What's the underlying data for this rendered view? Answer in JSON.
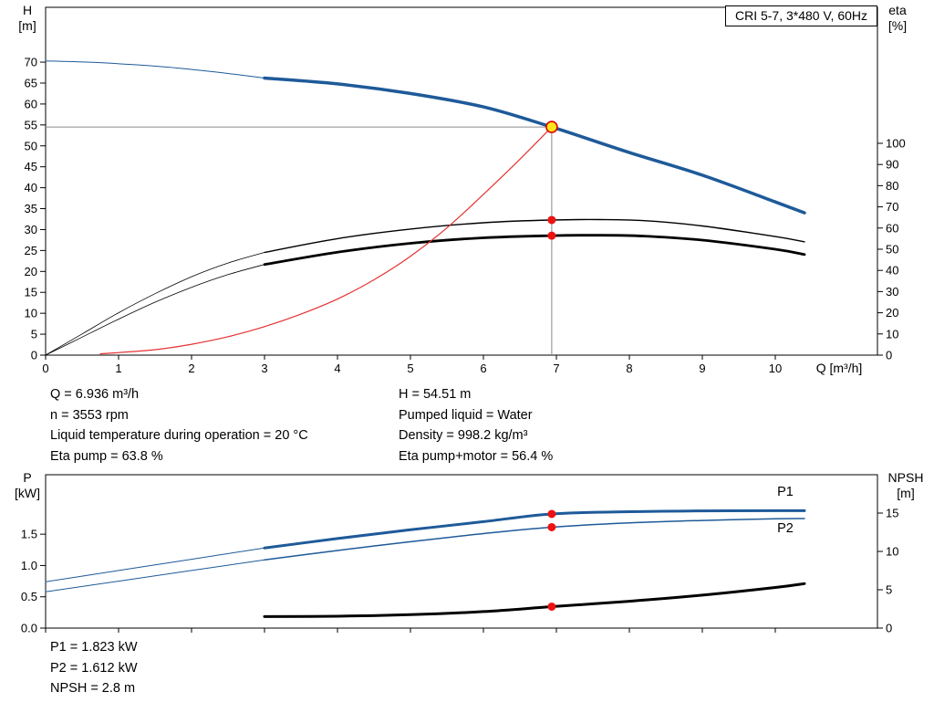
{
  "info_top": {
    "left": [
      "Q = 6.936 m³/h",
      "n = 3553 rpm",
      "Liquid temperature during operation = 20 °C",
      "Eta pump = 63.8 %"
    ],
    "right": [
      "H = 54.51 m",
      "Pumped liquid = Water",
      "Density = 998.2 kg/m³",
      "Eta pump+motor = 56.4 %"
    ]
  },
  "info_bottom": [
    "P1 = 1.823 kW",
    "P2 = 1.612 kW",
    "NPSH = 2.8 m"
  ],
  "chart_data": [
    {
      "type": "line",
      "id": "qh-eta-chart",
      "title": "CRI 5-7, 3*480 V, 60Hz",
      "x_axis": {
        "label": "Q [m³/h]",
        "min": 0,
        "max": 11.4,
        "tick_vals": [
          0,
          1,
          2,
          3,
          4,
          5,
          6,
          7,
          8,
          9,
          10
        ],
        "tick_labels": [
          "0",
          "1",
          "2",
          "3",
          "4",
          "5",
          "6",
          "7",
          "8",
          "9",
          "10"
        ]
      },
      "left_axis": {
        "label_lines": [
          "H",
          "[m]"
        ],
        "min": 0,
        "max": 83.1,
        "tick_vals": [
          0,
          5,
          10,
          15,
          20,
          25,
          30,
          35,
          40,
          45,
          50,
          55,
          60,
          65,
          70
        ],
        "tick_labels": [
          "0",
          "5",
          "10",
          "15",
          "20",
          "25",
          "30",
          "35",
          "40",
          "45",
          "50",
          "55",
          "60",
          "65",
          "70"
        ]
      },
      "right_axis": {
        "label_lines": [
          "eta",
          "[%]"
        ],
        "min": 0,
        "max": 164.2,
        "tick_vals": [
          0,
          10,
          20,
          30,
          40,
          50,
          60,
          70,
          80,
          90,
          100
        ],
        "tick_labels": [
          "0",
          "10",
          "20",
          "30",
          "40",
          "50",
          "60",
          "70",
          "80",
          "90",
          "100"
        ]
      },
      "crosshair": {
        "q": 6.936,
        "h": 54.51,
        "color": "#8a8a8a"
      },
      "series": [
        {
          "name": "h-curve-extension",
          "axis": "left",
          "color": "#1e5a99",
          "width": 1,
          "points": [
            [
              0,
              70.3
            ],
            [
              0.6,
              70.0
            ],
            [
              1.2,
              69.4
            ],
            [
              1.8,
              68.6
            ],
            [
              2.4,
              67.5
            ],
            [
              3,
              66.2
            ]
          ]
        },
        {
          "name": "h-curve",
          "axis": "left",
          "color": "#1e5a99",
          "width": 3.5,
          "points": [
            [
              3,
              66.2
            ],
            [
              4,
              64.8
            ],
            [
              5,
              62.5
            ],
            [
              6,
              59.3
            ],
            [
              6.936,
              54.51
            ],
            [
              8,
              48.4
            ],
            [
              9,
              43.0
            ],
            [
              10,
              36.6
            ],
            [
              10.4,
              34.0
            ]
          ]
        },
        {
          "name": "eta-pump-extension",
          "axis": "right",
          "color": "#000000",
          "width": 0.8,
          "points": [
            [
              0,
              0
            ],
            [
              0.5,
              10
            ],
            [
              1,
              20
            ],
            [
              1.5,
              29
            ],
            [
              2,
              37
            ],
            [
              2.5,
              43.5
            ],
            [
              3,
              48.5
            ]
          ]
        },
        {
          "name": "eta-pump-curve",
          "axis": "right",
          "color": "#000000",
          "width": 1.4,
          "points": [
            [
              3,
              48.5
            ],
            [
              4,
              55
            ],
            [
              5,
              59.5
            ],
            [
              6,
              62.5
            ],
            [
              6.936,
              63.8
            ],
            [
              7.6,
              64.0
            ],
            [
              8.2,
              63.5
            ],
            [
              9,
              61
            ],
            [
              10,
              56
            ],
            [
              10.4,
              53.5
            ]
          ]
        },
        {
          "name": "eta-pump-motor-extension",
          "axis": "right",
          "color": "#000000",
          "width": 0.8,
          "points": [
            [
              0,
              0
            ],
            [
              0.5,
              8.5
            ],
            [
              1,
              17
            ],
            [
              1.5,
              25
            ],
            [
              2,
              32
            ],
            [
              2.5,
              38
            ],
            [
              3,
              42.8
            ]
          ]
        },
        {
          "name": "eta-pump-motor-curve",
          "axis": "right",
          "color": "#000000",
          "width": 2.8,
          "points": [
            [
              3,
              42.8
            ],
            [
              4,
              48.6
            ],
            [
              5,
              52.8
            ],
            [
              6,
              55.4
            ],
            [
              6.936,
              56.4
            ],
            [
              7.6,
              56.6
            ],
            [
              8.2,
              56.2
            ],
            [
              9,
              54.3
            ],
            [
              10,
              50
            ],
            [
              10.4,
              47.5
            ]
          ]
        },
        {
          "name": "duty-eta-red-curve",
          "axis": "left",
          "color": "#e53232",
          "width": 1.2,
          "points": [
            [
              0.75,
              0.3
            ],
            [
              1.5,
              1.3
            ],
            [
              2,
              2.6
            ],
            [
              2.5,
              4.4
            ],
            [
              3,
              6.8
            ],
            [
              3.5,
              9.8
            ],
            [
              4,
              13.4
            ],
            [
              4.5,
              18
            ],
            [
              5,
              23.6
            ],
            [
              5.5,
              30.4
            ],
            [
              6,
              38.4
            ],
            [
              6.5,
              46.8
            ],
            [
              6.936,
              54.51
            ]
          ]
        }
      ],
      "markers": [
        {
          "name": "duty-point",
          "axis": "left",
          "q": 6.936,
          "v": 54.51,
          "r": 6,
          "fill": "#ffe619",
          "stroke": "#dd0000"
        },
        {
          "name": "eta-pump-point",
          "axis": "right",
          "q": 6.936,
          "v": 63.8,
          "r": 4.5,
          "fill": "#ee1111"
        },
        {
          "name": "eta-pump-motor-point",
          "axis": "right",
          "q": 6.936,
          "v": 56.4,
          "r": 4.5,
          "fill": "#ee1111"
        }
      ]
    },
    {
      "type": "line",
      "id": "power-npsh-chart",
      "title": "",
      "x_axis": {
        "label": "",
        "min": 0,
        "max": 11.4,
        "tick_vals": [
          0,
          1,
          2,
          3,
          4,
          5,
          6,
          7,
          8,
          9,
          10
        ],
        "tick_labels": []
      },
      "left_axis": {
        "label_lines": [
          "P",
          "[kW]"
        ],
        "min": 0,
        "max": 2.45,
        "tick_vals": [
          0,
          0.5,
          1.0,
          1.5
        ],
        "tick_labels": [
          "0.0",
          "0.5",
          "1.0",
          "1.5"
        ]
      },
      "right_axis": {
        "label_lines": [
          "NPSH",
          "[m]"
        ],
        "min": 0,
        "max": 20,
        "tick_vals": [
          0,
          5,
          10,
          15
        ],
        "tick_labels": [
          "0",
          "5",
          "10",
          "15"
        ]
      },
      "series": [
        {
          "name": "p1-extension",
          "axis": "left",
          "color": "#1e5a99",
          "width": 1,
          "points": [
            [
              0,
              0.74
            ],
            [
              1,
              0.92
            ],
            [
              2,
              1.1
            ],
            [
              3,
              1.28
            ]
          ]
        },
        {
          "name": "p1-curve",
          "axis": "left",
          "color": "#1e5a99",
          "width": 3,
          "points": [
            [
              3,
              1.28
            ],
            [
              4,
              1.43
            ],
            [
              5,
              1.57
            ],
            [
              6,
              1.7
            ],
            [
              6.936,
              1.823
            ],
            [
              8,
              1.86
            ],
            [
              9,
              1.872
            ],
            [
              10,
              1.875
            ],
            [
              10.4,
              1.875
            ]
          ]
        },
        {
          "name": "p2-extension",
          "axis": "left",
          "color": "#1e5a99",
          "width": 1,
          "points": [
            [
              0,
              0.58
            ],
            [
              1,
              0.75
            ],
            [
              2,
              0.92
            ],
            [
              3,
              1.09
            ]
          ]
        },
        {
          "name": "p2-curve",
          "axis": "left",
          "color": "#1e5a99",
          "width": 1.5,
          "points": [
            [
              3,
              1.09
            ],
            [
              4,
              1.24
            ],
            [
              5,
              1.38
            ],
            [
              6,
              1.51
            ],
            [
              6.936,
              1.612
            ],
            [
              8,
              1.68
            ],
            [
              9,
              1.72
            ],
            [
              10,
              1.745
            ],
            [
              10.4,
              1.75
            ]
          ]
        },
        {
          "name": "npsh-curve",
          "axis": "right",
          "color": "#000000",
          "width": 3,
          "points": [
            [
              3,
              1.5
            ],
            [
              4,
              1.55
            ],
            [
              5,
              1.75
            ],
            [
              6,
              2.15
            ],
            [
              6.936,
              2.8
            ],
            [
              8,
              3.5
            ],
            [
              9,
              4.3
            ],
            [
              10,
              5.3
            ],
            [
              10.4,
              5.8
            ]
          ]
        }
      ],
      "markers": [
        {
          "name": "p1-point",
          "axis": "left",
          "q": 6.936,
          "v": 1.823,
          "r": 4.5,
          "fill": "#ee1111"
        },
        {
          "name": "p2-point",
          "axis": "left",
          "q": 6.936,
          "v": 1.612,
          "r": 4.5,
          "fill": "#ee1111"
        },
        {
          "name": "npsh-point",
          "axis": "right",
          "q": 6.936,
          "v": 2.8,
          "r": 4.5,
          "fill": "#ee1111"
        }
      ],
      "curve_labels": [
        {
          "name": "p1-curve-label",
          "text": "P1",
          "color": "#1e5a99"
        },
        {
          "name": "p2-curve-label",
          "text": "P2",
          "color": "#1e5a99"
        }
      ]
    }
  ]
}
